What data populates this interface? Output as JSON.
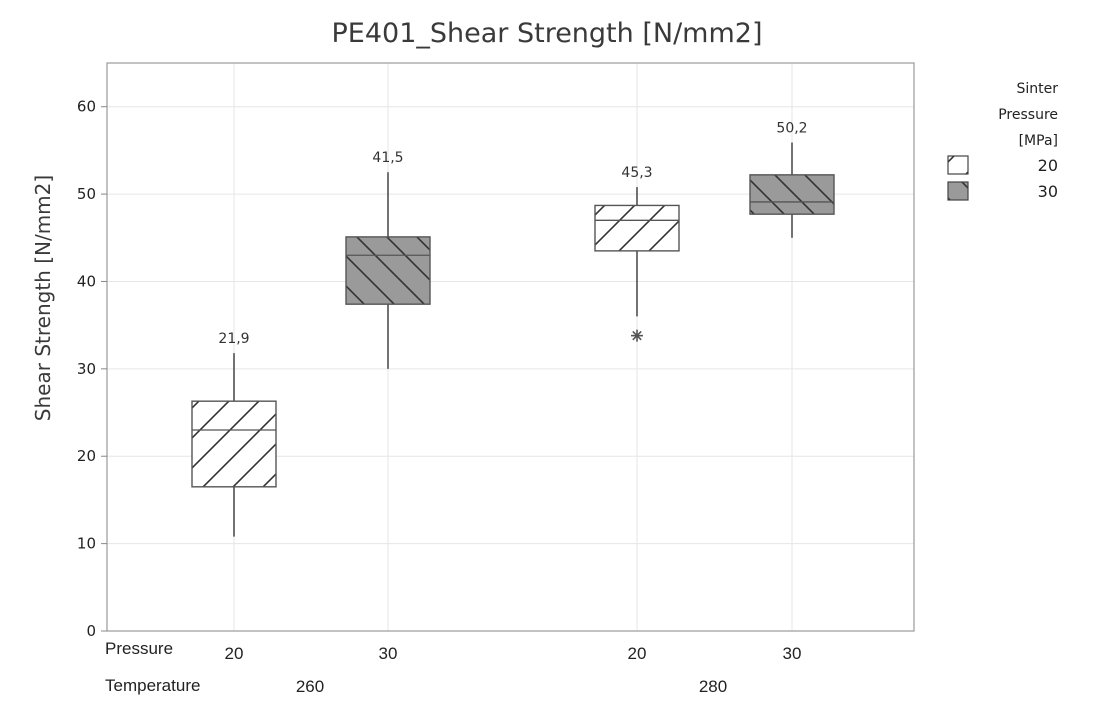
{
  "chart_data": {
    "type": "boxplot",
    "title": "PE401_Shear Strength [N/mm2]",
    "ylabel": "Shear Strength [N/mm2]",
    "ylim": [
      0,
      65
    ],
    "yticks": [
      0,
      10,
      20,
      30,
      40,
      50,
      60
    ],
    "grid": true,
    "factor_labels": {
      "pressure": "Pressure",
      "temperature": "Temperature"
    },
    "legend": {
      "title_lines": [
        "Sinter",
        "Pressure",
        "[MPa]"
      ],
      "placement": "right",
      "entries": [
        {
          "label": "20",
          "fill": "#ffffff"
        },
        {
          "label": "30",
          "fill": "#9a9a9a"
        }
      ]
    },
    "temperatures": [
      "260",
      "280"
    ],
    "boxes": [
      {
        "temperature": "260",
        "pressure": "20",
        "whisker_low": 10.8,
        "q1": 16.5,
        "median": 23.0,
        "q3": 26.3,
        "whisker_high": 31.8,
        "mean_label": "21,9",
        "outliers": [],
        "fill": "#ffffff"
      },
      {
        "temperature": "260",
        "pressure": "30",
        "whisker_low": 30.0,
        "q1": 37.4,
        "median": 43.0,
        "q3": 45.1,
        "whisker_high": 52.5,
        "mean_label": "41,5",
        "outliers": [],
        "fill": "#9a9a9a"
      },
      {
        "temperature": "280",
        "pressure": "20",
        "whisker_low": 36.0,
        "q1": 43.5,
        "median": 47.0,
        "q3": 48.7,
        "whisker_high": 50.8,
        "mean_label": "45,3",
        "outliers": [
          33.8
        ],
        "fill": "#ffffff"
      },
      {
        "temperature": "280",
        "pressure": "30",
        "whisker_low": 45.0,
        "q1": 47.7,
        "median": 49.1,
        "q3": 52.2,
        "whisker_high": 55.9,
        "mean_label": "50,2",
        "outliers": [],
        "fill": "#9a9a9a"
      }
    ]
  }
}
